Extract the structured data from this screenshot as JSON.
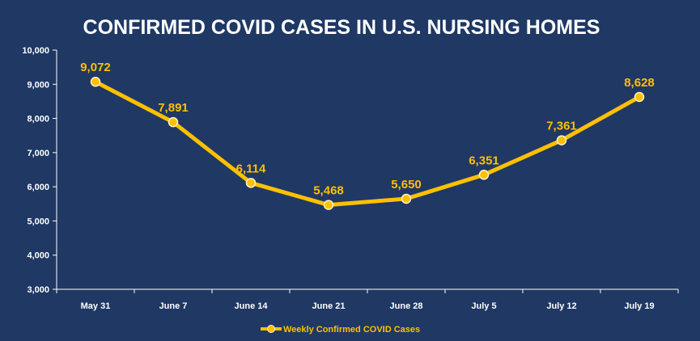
{
  "chart_data": {
    "type": "line",
    "title": "CONFIRMED COVID CASES IN U.S. NURSING HOMES",
    "categories": [
      "May 31",
      "June 7",
      "June 14",
      "June 21",
      "June 28",
      "July 5",
      "July 12",
      "July 19"
    ],
    "series": [
      {
        "name": "Weekly Confirmed COVID Cases",
        "values": [
          9072,
          7891,
          6114,
          5468,
          5650,
          6351,
          7361,
          8628
        ],
        "data_labels": [
          "9,072",
          "7,891",
          "6,114",
          "5,468",
          "5,650",
          "6,351",
          "7,361",
          "8,628"
        ],
        "color": "#ffc000"
      }
    ],
    "ylim": [
      3000,
      10000
    ],
    "yticks": [
      "3,000",
      "4,000",
      "5,000",
      "6,000",
      "7,000",
      "8,000",
      "9,000",
      "10,000"
    ],
    "ytick_values": [
      3000,
      4000,
      5000,
      6000,
      7000,
      8000,
      9000,
      10000
    ],
    "grid": false,
    "legend_position": "bottom",
    "background_color": "#1f3864",
    "text_color": "#ffffff"
  }
}
